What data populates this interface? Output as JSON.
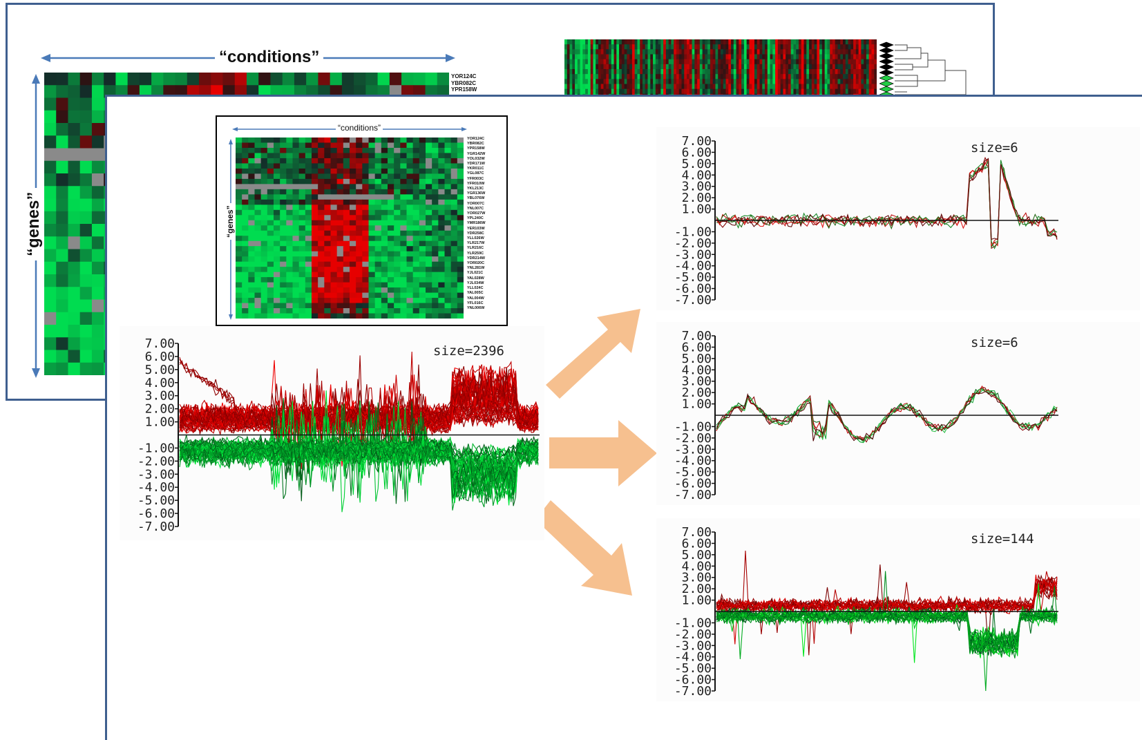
{
  "back_panel": {
    "conditions_label": "“conditions”",
    "genes_label": "“genes”",
    "gene_ids": [
      "YOR124C",
      "YBR082C",
      "YPR158W"
    ]
  },
  "inset": {
    "conditions_label": "“conditions”",
    "genes_label": "“genes”",
    "gene_ids": [
      "YOR124C",
      "YBR082C",
      "YPR158W",
      "YGR142W",
      "YOL032W",
      "YDR171W",
      "YKR011C",
      "YGL087C",
      "YFR003C",
      "YFR010W",
      "YKL213C",
      "YGR136W",
      "YBL076W",
      "YOR007C",
      "YNL007C",
      "YOR027W",
      "YPL240C",
      "YMR186W",
      "YER103W",
      "YDR258C",
      "YLL026W",
      "YLR217W",
      "YLR216C",
      "YLR259C",
      "YDR214W",
      "YOR020C",
      "YNL281W",
      "YJL021C",
      "YAL028W",
      "YJL034W",
      "YLL024C",
      "YAL005C",
      "YAL004W",
      "YFL016C",
      "YNL006W"
    ]
  },
  "y_tick_labels": [
    "7.00",
    "6.00",
    "5.00",
    "4.00",
    "3.00",
    "2.00",
    "1.00",
    "-1.00",
    "-2.00",
    "-3.00",
    "-4.00",
    "-5.00",
    "-6.00",
    "-7.00"
  ],
  "colors": {
    "up": "#cc1111",
    "down": "#11bb33",
    "arrow": "#f6c08f",
    "frame": "#3f5f8f"
  },
  "chart_data": [
    {
      "type": "line",
      "size_label": "size=2396",
      "ylim": [
        -7,
        7
      ]
    },
    {
      "type": "line",
      "size_label": "size=6",
      "ylim": [
        -7,
        7
      ]
    },
    {
      "type": "line",
      "size_label": "size=6",
      "ylim": [
        -7,
        7
      ]
    },
    {
      "type": "line",
      "size_label": "size=144",
      "ylim": [
        -7,
        7
      ]
    }
  ]
}
